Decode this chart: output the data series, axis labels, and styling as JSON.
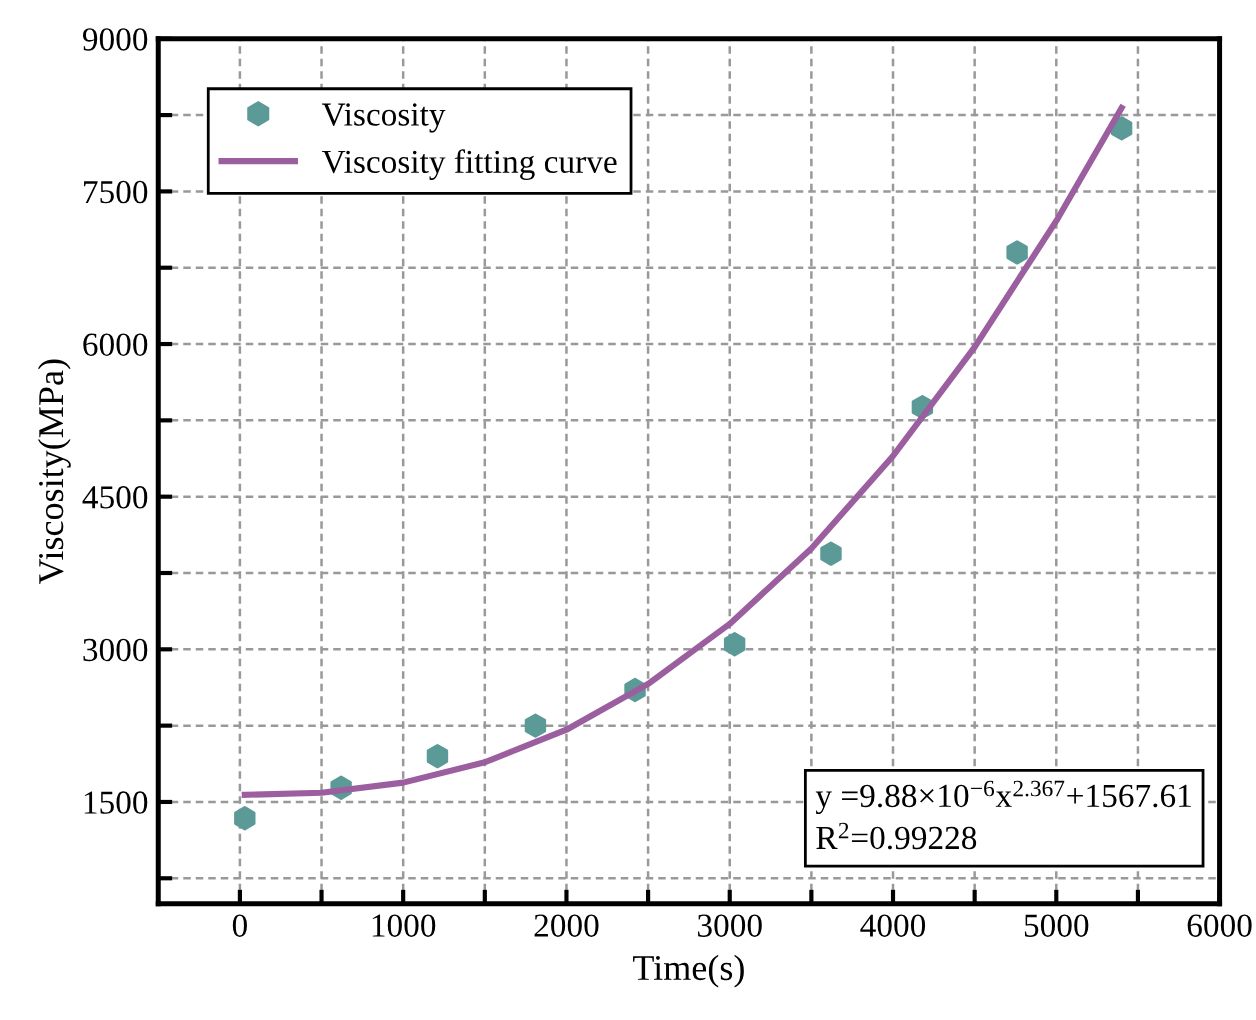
{
  "chart_data": {
    "type": "scatter",
    "xlabel": "Time(s)",
    "ylabel": "Viscosity(MPa)",
    "series": [
      {
        "name": "Viscosity",
        "color": "#5b9a97",
        "x": [
          30,
          620,
          1210,
          1810,
          2420,
          3030,
          3620,
          4180,
          4760,
          5400
        ],
        "values": [
          1340,
          1640,
          1950,
          2250,
          2600,
          3050,
          3940,
          5380,
          6900,
          8120
        ]
      },
      {
        "name": "Viscosity fitting curve",
        "type": "line",
        "color": "#9b5fa0",
        "marker": "none",
        "line_style": "solid",
        "x": [
          30,
          500,
          1000,
          1500,
          2000,
          2500,
          3000,
          3500,
          4000,
          4500,
          5000,
          5400
        ],
        "values": [
          1570,
          1590,
          1690,
          1890,
          2210,
          2660,
          3250,
          3990,
          4900,
          5970,
          7210,
          8320
        ]
      }
    ],
    "xlim": [
      -500,
      6000
    ],
    "ylim": [
      500,
      9000
    ],
    "xticks": [
      {
        "value": 500,
        "label": null
      },
      0,
      1000,
      {
        "value": 1500,
        "label": null
      },
      2000,
      {
        "value": 2500,
        "label": null
      },
      3000,
      {
        "value": 3500,
        "label": null
      },
      4000,
      {
        "value": 4500,
        "label": null
      },
      5000,
      {
        "value": 5500,
        "label": null
      },
      6000
    ],
    "yticks": [
      {
        "value": 750,
        "label": null
      },
      1500,
      {
        "value": 2250,
        "label": null
      },
      3000,
      {
        "value": 3750,
        "label": null
      },
      4500,
      {
        "value": 5250,
        "label": null
      },
      6000,
      {
        "value": 6750,
        "label": null
      },
      7500,
      {
        "value": 8250,
        "label": null
      },
      9000
    ],
    "grid": true,
    "legend": "top left",
    "annotations": [
      "y =9.88×10$^{−6}$x$^{2.367}$+1567.61",
      "R$^{2}$=0.99228"
    ]
  }
}
